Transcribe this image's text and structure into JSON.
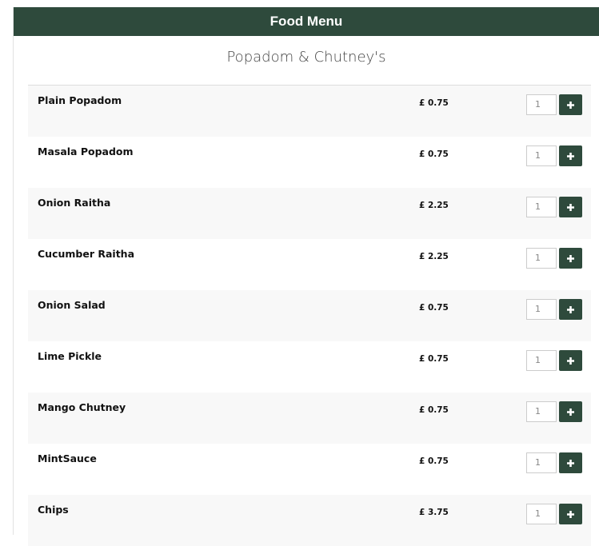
{
  "header": {
    "title": "Food Menu"
  },
  "section": {
    "title": "Popadom & Chutney's"
  },
  "items": [
    {
      "name": "Plain Popadom",
      "price": "£ 0.75",
      "quantity": "1"
    },
    {
      "name": "Masala Popadom",
      "price": "£ 0.75",
      "quantity": "1"
    },
    {
      "name": "Onion Raitha",
      "price": "£ 2.25",
      "quantity": "1"
    },
    {
      "name": "Cucumber Raitha",
      "price": "£ 2.25",
      "quantity": "1"
    },
    {
      "name": "Onion Salad",
      "price": "£ 0.75",
      "quantity": "1"
    },
    {
      "name": "Lime Pickle",
      "price": "£ 0.75",
      "quantity": "1"
    },
    {
      "name": "Mango Chutney",
      "price": "£ 0.75",
      "quantity": "1"
    },
    {
      "name": "MintSauce",
      "price": "£ 0.75",
      "quantity": "1"
    },
    {
      "name": "Chips",
      "price": "£ 3.75",
      "quantity": "1"
    }
  ]
}
